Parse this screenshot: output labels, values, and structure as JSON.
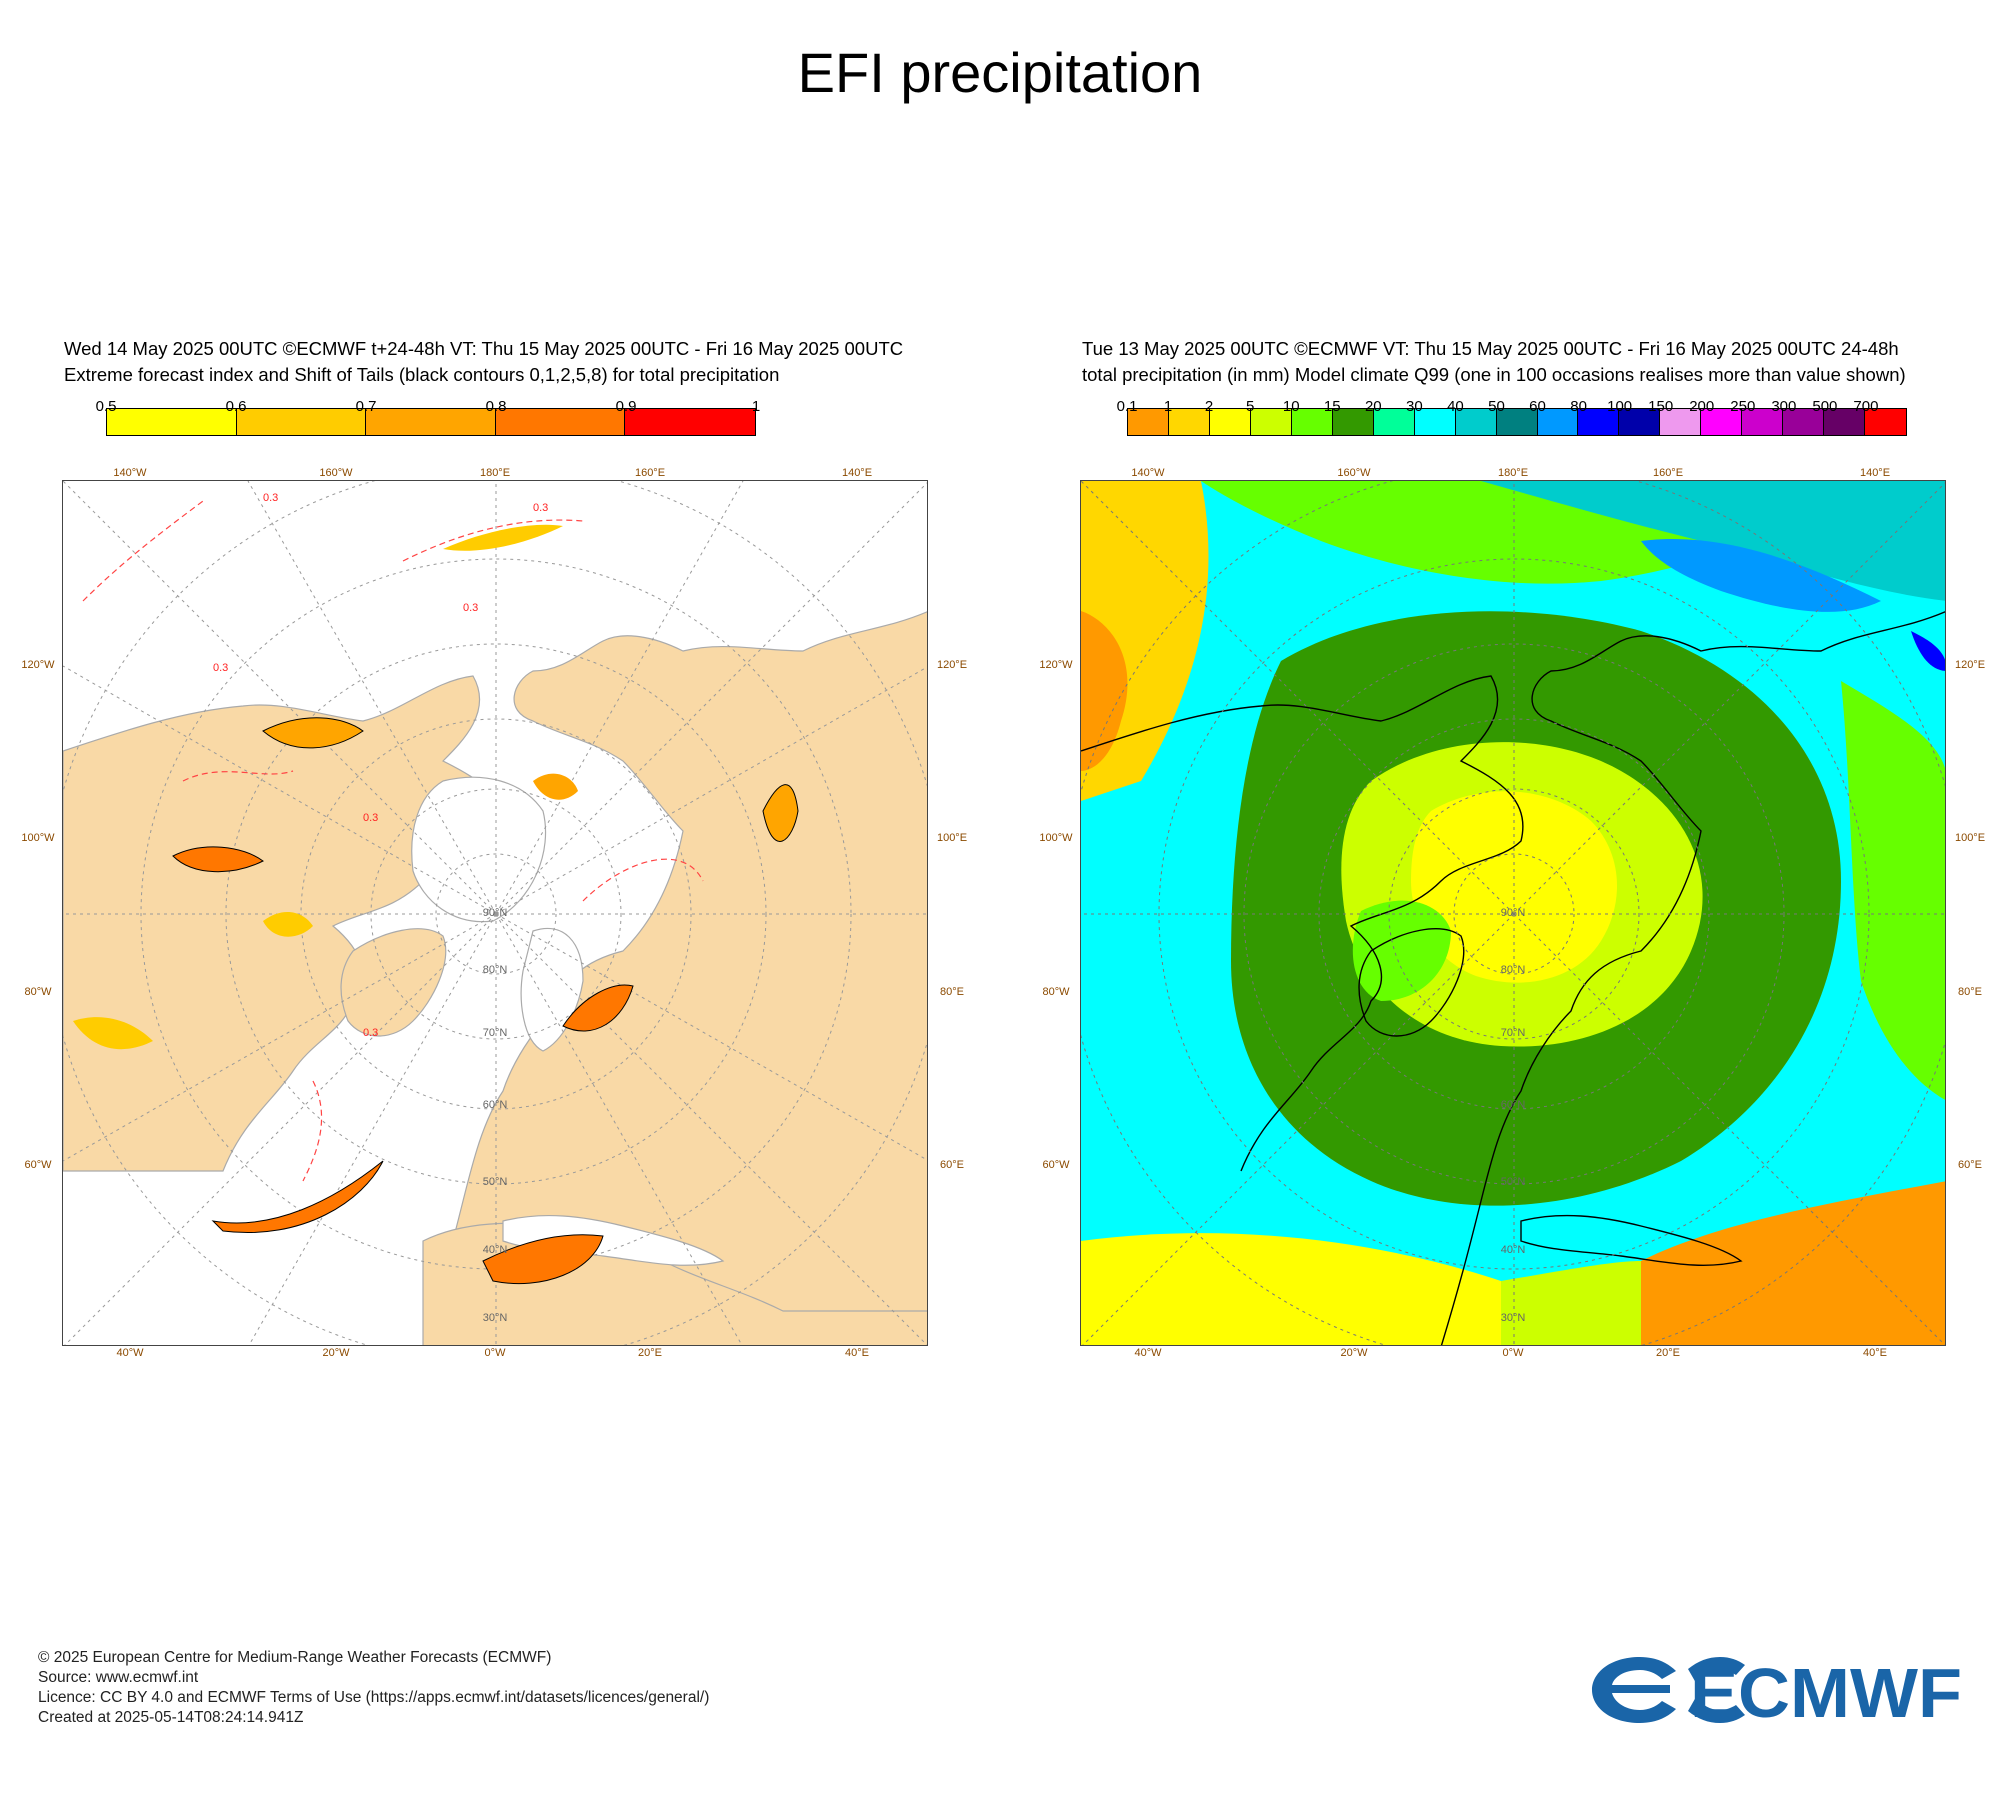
{
  "title": "EFI precipitation",
  "left_panel": {
    "header_line1": "Wed 14 May 2025 00UTC ©ECMWF t+24-48h  VT: Thu 15 May 2025 00UTC - Fri 16 May 2025 00UTC",
    "header_line2": "Extreme forecast index and Shift of Tails (black contours 0,1,2,5,8) for total precipitation",
    "legend": {
      "ticks": [
        "0.5",
        "0.6",
        "0.7",
        "0.8",
        "0.9",
        "1"
      ],
      "colors": [
        "#ffff00",
        "#ffcc00",
        "#ffa500",
        "#ff7700",
        "#ff0000"
      ]
    },
    "contour_label": "0.3"
  },
  "right_panel": {
    "header_line1": "Tue 13 May 2025 00UTC ©ECMWF VT: Thu 15 May 2025 00UTC - Fri 16 May 2025 00UTC   24-48h",
    "header_line2": "total precipitation (in mm)  Model climate Q99 (one in 100 occasions realises more than value shown)",
    "legend": {
      "ticks": [
        "0.1",
        "1",
        "2",
        "5",
        "10",
        "15",
        "20",
        "30",
        "40",
        "50",
        "60",
        "80",
        "100",
        "150",
        "200",
        "250",
        "300",
        "500",
        "700"
      ],
      "colors": [
        "#ff9900",
        "#ffd700",
        "#ffff00",
        "#ccff00",
        "#66ff00",
        "#339900",
        "#00ff99",
        "#00ffff",
        "#00cccc",
        "#008080",
        "#0099ff",
        "#0000ff",
        "#0000aa",
        "#ee99ee",
        "#ff00ff",
        "#cc00cc",
        "#990099",
        "#660066",
        "#ff0000"
      ]
    }
  },
  "graticule": {
    "top": [
      "140°W",
      "160°W",
      "180°E",
      "160°E",
      "140°E"
    ],
    "left": [
      "120°W",
      "100°W",
      "80°W",
      "60°W"
    ],
    "right": [
      "120°E",
      "100°E",
      "80°E",
      "60°E"
    ],
    "bottom": [
      "40°W",
      "20°W",
      "0°W",
      "20°E",
      "40°E"
    ],
    "lat_rings": [
      "30°N",
      "40°N",
      "50°N",
      "60°N",
      "70°N",
      "80°N",
      "90°N"
    ]
  },
  "footer": {
    "line1": "© 2025 European Centre for Medium-Range Weather Forecasts (ECMWF)",
    "line2": "Source: www.ecmwf.int",
    "line3": "Licence: CC BY 4.0 and ECMWF Terms of Use (https://apps.ecmwf.int/datasets/licences/general/)",
    "line4": "Created at 2025-05-14T08:24:14.941Z"
  },
  "logo_text": "ECMWF",
  "colors": {
    "land": "#f9d9a6",
    "ocean": "#ffffff",
    "logo": "#1a65a8",
    "grid": "#999999",
    "lon_label": "#8b4a00"
  }
}
